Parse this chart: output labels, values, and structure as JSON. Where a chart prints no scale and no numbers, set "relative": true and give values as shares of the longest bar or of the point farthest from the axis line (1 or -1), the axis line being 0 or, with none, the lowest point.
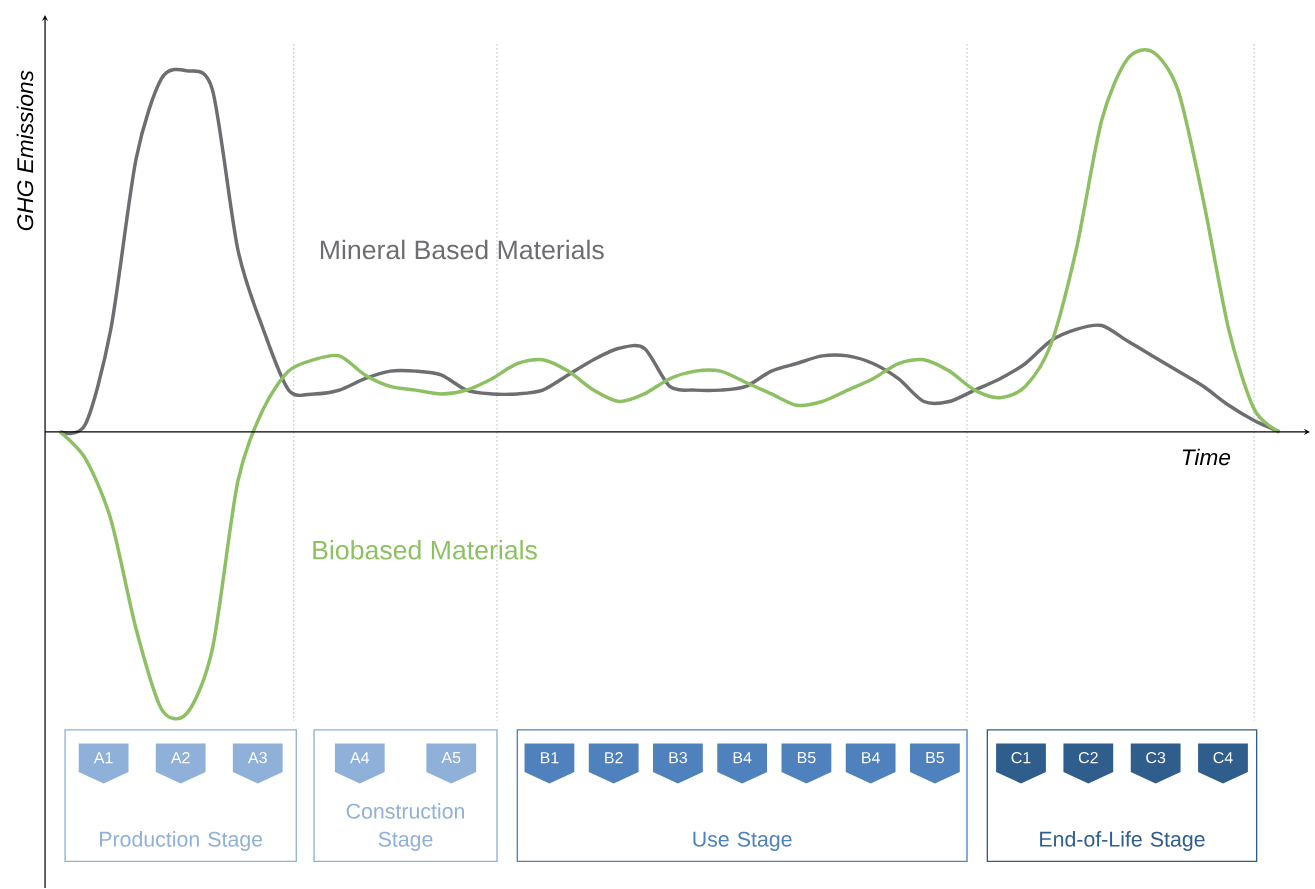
{
  "chart_data": {
    "type": "line",
    "relative": true,
    "xlabel": "Time",
    "ylabel": "GHG Emissions",
    "categories": [
      null,
      null,
      null,
      null,
      null,
      null,
      null,
      null,
      null,
      null,
      null,
      null,
      null,
      null,
      null,
      null,
      null,
      null,
      null,
      null,
      null,
      null,
      null,
      null,
      null,
      null,
      null,
      null,
      null,
      null,
      null,
      null,
      null,
      null,
      null,
      null,
      null,
      null,
      null,
      null,
      null,
      null,
      null,
      null,
      null,
      null,
      null,
      null,
      null
    ],
    "series": [
      {
        "name": "Mineral Based Materials",
        "color": "#6d6e71",
        "values": [
          0,
          0.02,
          0.27,
          0.72,
          0.93,
          0.95,
          0.9,
          0.48,
          0.27,
          0.11,
          0.1,
          0.11,
          0.14,
          0.16,
          0.16,
          0.15,
          0.11,
          0.1,
          0.1,
          0.11,
          0.15,
          0.19,
          0.22,
          0.22,
          0.12,
          0.11,
          0.11,
          0.12,
          0.16,
          0.18,
          0.2,
          0.2,
          0.18,
          0.14,
          0.08,
          0.08,
          0.11,
          0.14,
          0.18,
          0.24,
          0.27,
          0.28,
          0.24,
          0.2,
          0.16,
          0.12,
          0.07,
          0.03,
          0
        ]
      },
      {
        "name": "Biobased Materials",
        "color": "#8dc063",
        "values": [
          0,
          -0.07,
          -0.23,
          -0.52,
          -0.73,
          -0.74,
          -0.57,
          -0.13,
          0.06,
          0.16,
          0.19,
          0.2,
          0.15,
          0.12,
          0.11,
          0.1,
          0.11,
          0.14,
          0.18,
          0.19,
          0.16,
          0.11,
          0.08,
          0.1,
          0.14,
          0.16,
          0.16,
          0.13,
          0.1,
          0.07,
          0.08,
          0.11,
          0.14,
          0.18,
          0.19,
          0.16,
          0.11,
          0.09,
          0.12,
          0.23,
          0.48,
          0.82,
          0.98,
          1,
          0.9,
          0.61,
          0.27,
          0.06,
          0
        ]
      }
    ],
    "annotations": [
      "A1",
      "A2",
      "A3",
      "Production Stage",
      "A4",
      "A5",
      "Construction Stage",
      "B1",
      "B2",
      "B3",
      "B4",
      "B5",
      "B4",
      "B5",
      "Use Stage",
      "C1",
      "C2",
      "C3",
      "C4",
      "End-of-Life Stage"
    ],
    "legend": false,
    "marker": "none",
    "line_style": "solid"
  }
}
